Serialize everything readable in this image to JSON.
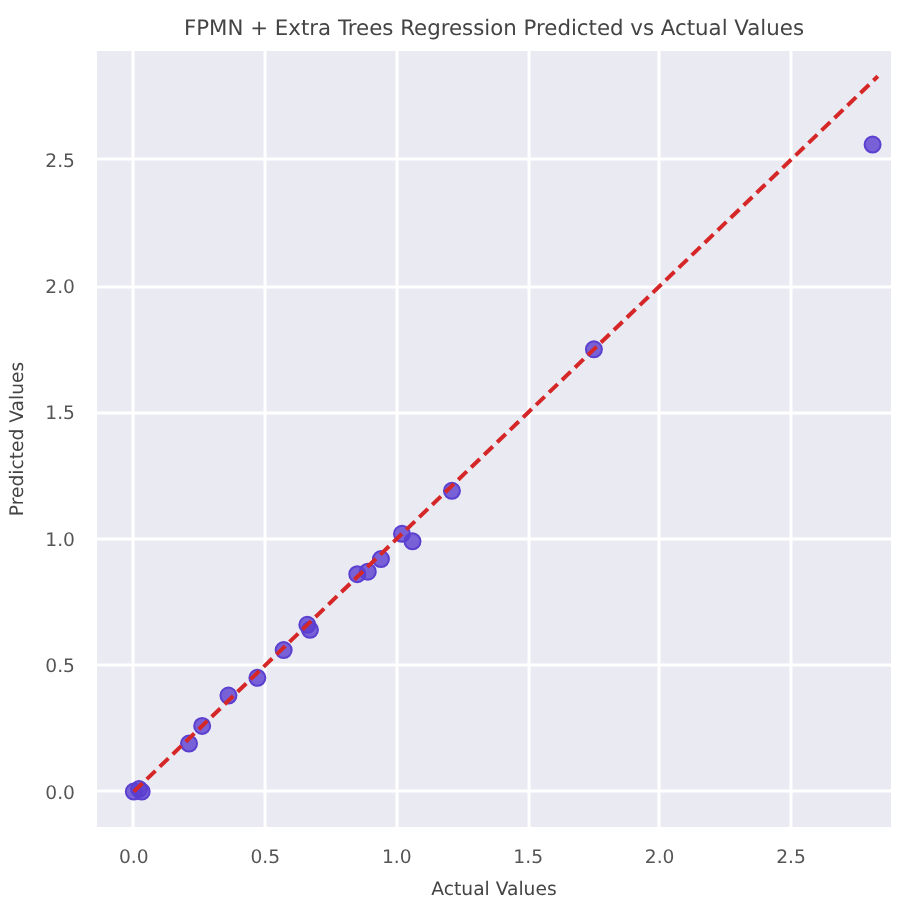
{
  "chart_data": {
    "type": "scatter",
    "title": "FPMN + Extra Trees Regression Predicted vs Actual Values",
    "xlabel": "Actual Values",
    "ylabel": "Predicted Values",
    "xlim": [
      -0.14,
      2.88
    ],
    "ylim": [
      -0.14,
      2.93
    ],
    "xticks": [
      {
        "value": 0,
        "label": "0.0"
      },
      {
        "value": 0.5,
        "label": "0.5"
      },
      {
        "value": 1,
        "label": "1.0"
      },
      {
        "value": 1.5,
        "label": "1.5"
      },
      {
        "value": 2,
        "label": "2.0"
      },
      {
        "value": 2.5,
        "label": "2.5"
      }
    ],
    "yticks": [
      {
        "value": 0,
        "label": "0.0"
      },
      {
        "value": 0.5,
        "label": "0.5"
      },
      {
        "value": 1,
        "label": "1.0"
      },
      {
        "value": 1.5,
        "label": "1.5"
      },
      {
        "value": 2,
        "label": "2.0"
      },
      {
        "value": 2.5,
        "label": "2.5"
      }
    ],
    "grid": true,
    "series": [
      {
        "marker": "circle",
        "color": "#5b3fd0",
        "x": [
          0.0,
          0.02,
          0.03,
          0.21,
          0.26,
          0.36,
          0.47,
          0.57,
          0.66,
          0.67,
          0.85,
          0.89,
          0.94,
          1.02,
          1.06,
          1.21,
          1.75,
          2.81
        ],
        "values": [
          0.0,
          0.01,
          0.0,
          0.19,
          0.26,
          0.38,
          0.45,
          0.56,
          0.66,
          0.64,
          0.86,
          0.87,
          0.92,
          1.02,
          0.99,
          1.19,
          1.75,
          2.56
        ]
      },
      {
        "type": "line",
        "color": "#d62728",
        "line_style": "dashed",
        "marker": "none",
        "x": [
          0.0,
          2.83
        ],
        "values": [
          0.0,
          2.83
        ]
      }
    ]
  }
}
